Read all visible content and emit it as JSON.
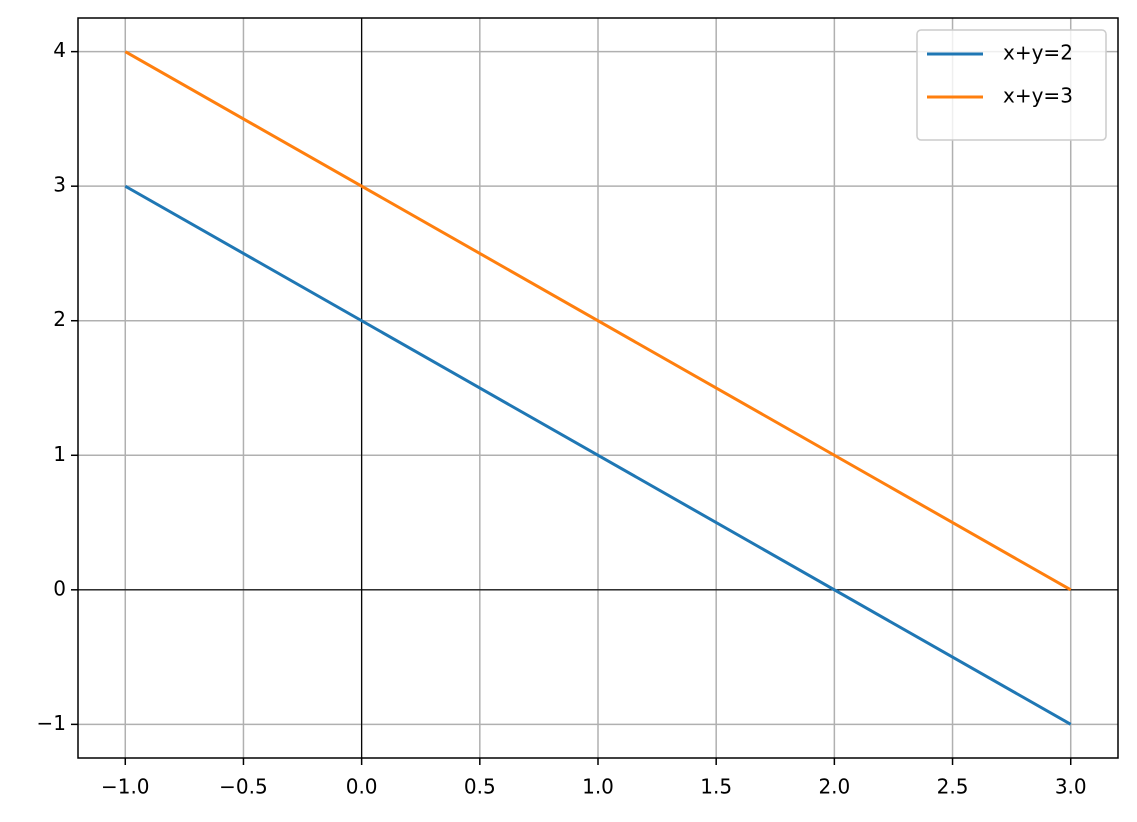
{
  "chart_data": {
    "type": "line",
    "x": [
      -1,
      3
    ],
    "series": [
      {
        "name": "x+y=2",
        "color": "#1f77b4",
        "values": [
          3,
          -1
        ]
      },
      {
        "name": "x+y=3",
        "color": "#ff7f0e",
        "values": [
          4,
          0
        ]
      }
    ],
    "xlim": [
      -1.2,
      3.2
    ],
    "ylim": [
      -1.25,
      4.25
    ],
    "xticks": [
      {
        "value": -1,
        "label": "−1.0"
      },
      {
        "value": -0.5,
        "label": "−0.5"
      },
      {
        "value": 0,
        "label": "0.0"
      },
      0.5,
      {
        "value": 1,
        "label": "1.0"
      },
      1.5,
      {
        "value": 2,
        "label": "2.0"
      },
      2.5,
      {
        "value": 3,
        "label": "3.0"
      }
    ],
    "yticks": [
      {
        "value": -1,
        "label": "−1"
      },
      0,
      1,
      2,
      3,
      4
    ],
    "grid": true,
    "axhline": 0,
    "axvline": 0,
    "legend": "upper right"
  }
}
